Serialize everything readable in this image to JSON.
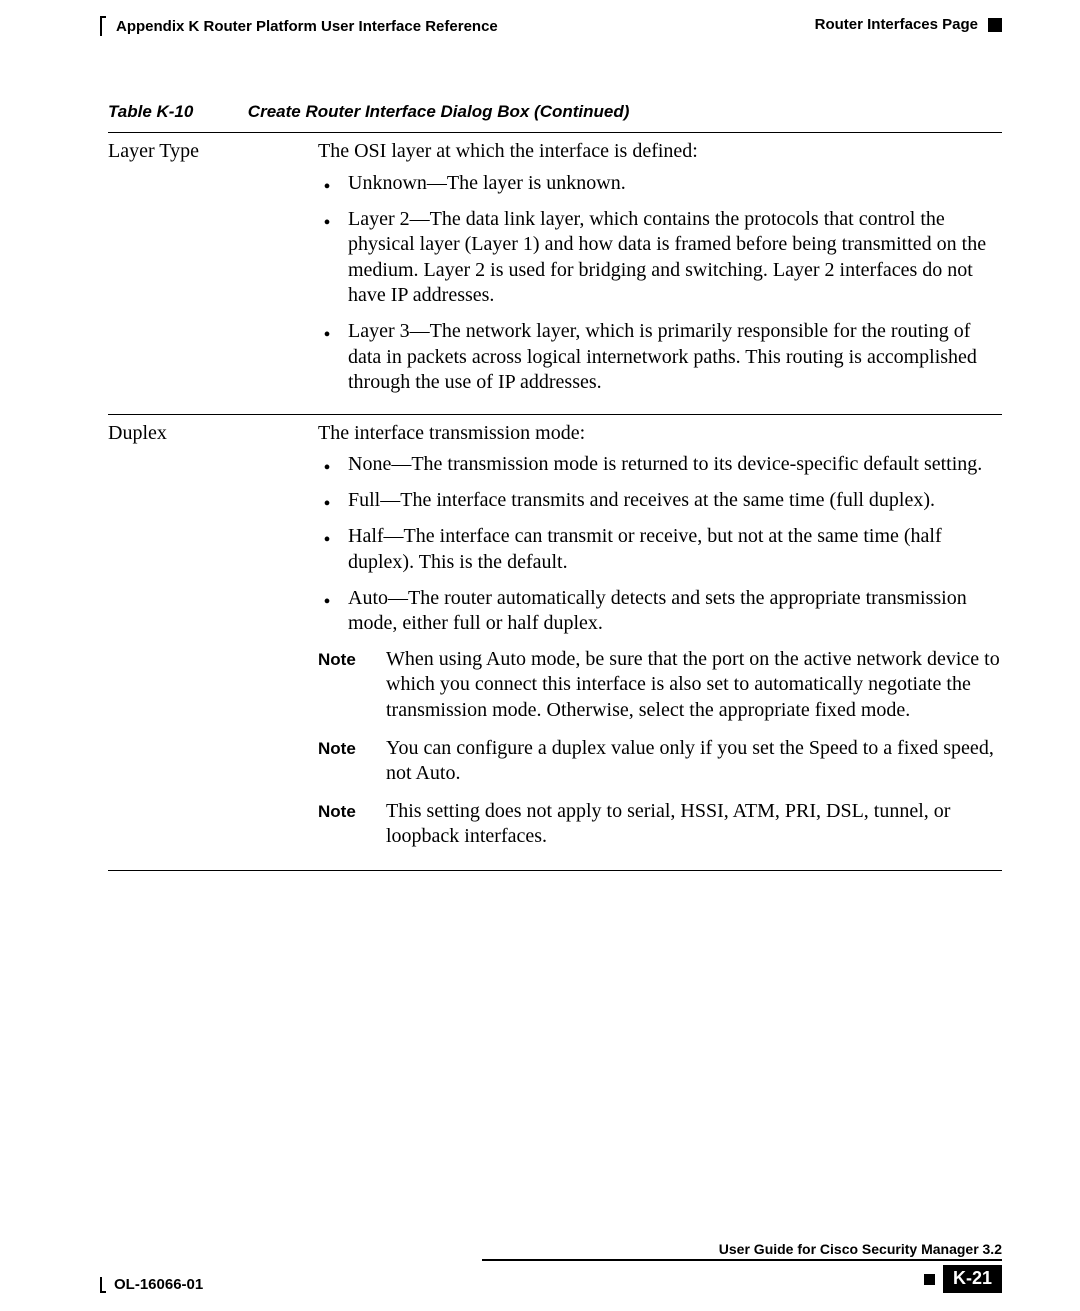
{
  "header": {
    "left": "Appendix K    Router Platform User Interface Reference",
    "right": "Router Interfaces Page"
  },
  "caption": {
    "table_no": "Table K-10",
    "title": "Create Router Interface Dialog Box (Continued)"
  },
  "rows": [
    {
      "label": "Layer Type",
      "lead": "The OSI layer at which the interface is defined:",
      "bullets": [
        "Unknown—The layer is unknown.",
        "Layer 2—The data link layer, which contains the protocols that control the physical layer (Layer 1) and how data is framed before being transmitted on the medium. Layer 2 is used for bridging and switching. Layer 2 interfaces do not have IP addresses.",
        "Layer 3—The network layer, which is primarily responsible for the routing of data in packets across logical internetwork paths. This routing is accomplished through the use of IP addresses."
      ],
      "notes": []
    },
    {
      "label": "Duplex",
      "lead": "The interface transmission mode:",
      "bullets": [
        "None—The transmission mode is returned to its device-specific default setting.",
        "Full—The interface transmits and receives at the same time (full duplex).",
        "Half—The interface can transmit or receive, but not at the same time (half duplex). This is the default.",
        "Auto—The router automatically detects and sets the appropriate transmission mode, either full or half duplex."
      ],
      "notes": [
        {
          "label": "Note",
          "text": "When using Auto mode, be sure that the port on the active network device to which you connect this interface is also set to automatically negotiate the transmission mode. Otherwise, select the appropriate fixed mode."
        },
        {
          "label": "Note",
          "text": "You can configure a duplex value only if you set the Speed to a fixed speed, not Auto."
        },
        {
          "label": "Note",
          "text": "This setting does not apply to serial, HSSI, ATM, PRI, DSL, tunnel, or loopback interfaces."
        }
      ]
    }
  ],
  "footer": {
    "doc_no": "OL-16066-01",
    "book": "User Guide for Cisco Security Manager 3.2",
    "page": "K-21"
  },
  "style": {
    "body_font_pt": 20,
    "caption_font_pt": 17,
    "header_font_pt": 15,
    "note_label_font_pt": 17,
    "colors": {
      "text": "#000000",
      "bg": "#ffffff",
      "rule": "#000000"
    }
  }
}
